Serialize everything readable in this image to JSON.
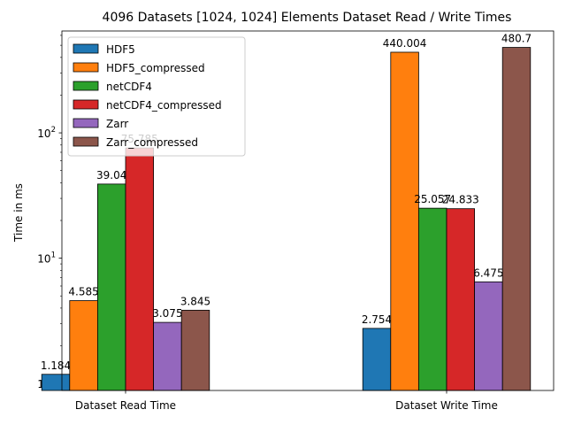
{
  "chart_data": {
    "type": "bar",
    "title": "4096 Datasets [1024, 1024] Elements Dataset Read / Write Times",
    "xlabel": "",
    "ylabel": "Time in ms",
    "yscale": "log",
    "ylim": [
      0.88,
      650
    ],
    "y_ticks": [
      {
        "value": 1,
        "base": "10",
        "exp": "0"
      },
      {
        "value": 10,
        "base": "10",
        "exp": "1"
      },
      {
        "value": 100,
        "base": "10",
        "exp": "2"
      }
    ],
    "categories": [
      "Dataset Read Time",
      "Dataset Write Time"
    ],
    "series": [
      {
        "name": "HDF5",
        "color": "#1f77b4",
        "values": [
          1.184,
          2.754
        ]
      },
      {
        "name": "HDF5_compressed",
        "color": "#ff7f0e",
        "values": [
          4.585,
          440.004
        ]
      },
      {
        "name": "netCDF4",
        "color": "#2ca02c",
        "values": [
          39.04,
          25.057
        ]
      },
      {
        "name": "netCDF4_compressed",
        "color": "#d62728",
        "values": [
          75.785,
          24.833
        ]
      },
      {
        "name": "Zarr",
        "color": "#9467bd",
        "values": [
          3.075,
          6.475
        ]
      },
      {
        "name": "Zarr_compressed",
        "color": "#8c564b",
        "values": [
          3.845,
          480.7
        ]
      }
    ],
    "legend_position": "upper-left",
    "grid": false
  }
}
